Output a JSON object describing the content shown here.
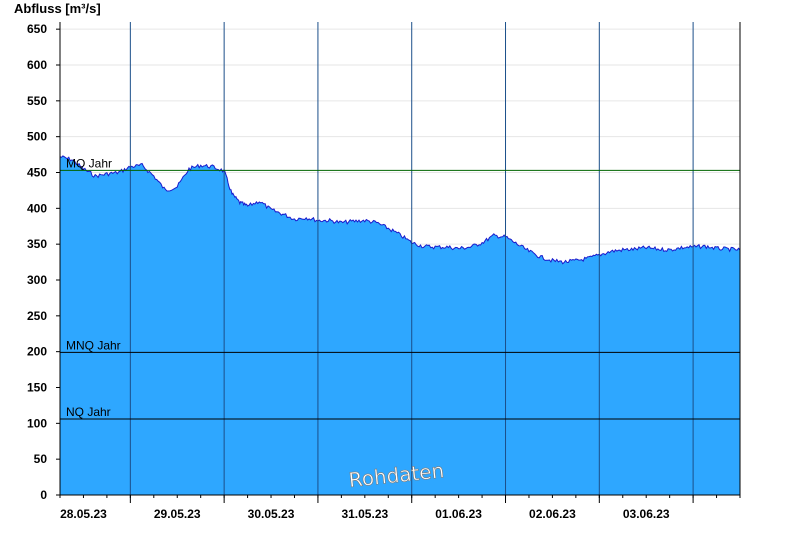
{
  "chart_data": {
    "type": "area",
    "ylabel": "Abfluss [m³/s]",
    "ylim": [
      0,
      660
    ],
    "yticks": [
      0,
      50,
      100,
      150,
      200,
      250,
      300,
      350,
      400,
      450,
      500,
      550,
      600,
      650
    ],
    "xlim": [
      "2023-05-27T18:00",
      "2023-06-04T00:00"
    ],
    "day_boundaries": [
      "2023-05-28T12:00",
      "2023-05-29T12:00",
      "2023-05-30T12:00",
      "2023-05-31T12:00",
      "2023-06-01T12:00",
      "2023-06-02T12:00",
      "2023-06-03T12:00"
    ],
    "x_tick_labels": [
      {
        "label": "28.05.23",
        "x": "2023-05-28T00:00"
      },
      {
        "label": "29.05.23",
        "x": "2023-05-29T00:00"
      },
      {
        "label": "30.05.23",
        "x": "2023-05-30T00:00"
      },
      {
        "label": "31.05.23",
        "x": "2023-05-31T00:00"
      },
      {
        "label": "01.06.23",
        "x": "2023-06-01T00:00"
      },
      {
        "label": "02.06.23",
        "x": "2023-06-02T00:00"
      },
      {
        "label": "03.06.23",
        "x": "2023-06-03T00:00"
      }
    ],
    "reference_lines": [
      {
        "name": "MQ Jahr",
        "value": 453,
        "color": "#006400"
      },
      {
        "name": "MNQ Jahr",
        "value": 199,
        "color": "#000000"
      },
      {
        "name": "NQ Jahr",
        "value": 106,
        "color": "#000000"
      }
    ],
    "series": [
      {
        "color": "#2ea7ff",
        "line_color": "#1a1acc",
        "x": [
          "2023-05-27T18:00",
          "2023-05-27T21:00",
          "2023-05-28T00:00",
          "2023-05-28T03:00",
          "2023-05-28T06:00",
          "2023-05-28T09:00",
          "2023-05-28T12:00",
          "2023-05-28T15:00",
          "2023-05-28T18:00",
          "2023-05-28T21:00",
          "2023-05-29T00:00",
          "2023-05-29T03:00",
          "2023-05-29T06:00",
          "2023-05-29T09:00",
          "2023-05-29T12:00",
          "2023-05-29T14:00",
          "2023-05-29T16:00",
          "2023-05-29T18:00",
          "2023-05-29T21:00",
          "2023-05-30T00:00",
          "2023-05-30T03:00",
          "2023-05-30T06:00",
          "2023-05-30T09:00",
          "2023-05-30T12:00",
          "2023-05-30T15:00",
          "2023-05-30T18:00",
          "2023-05-30T21:00",
          "2023-05-31T00:00",
          "2023-05-31T03:00",
          "2023-05-31T06:00",
          "2023-05-31T09:00",
          "2023-05-31T12:00",
          "2023-05-31T15:00",
          "2023-05-31T18:00",
          "2023-05-31T21:00",
          "2023-06-01T00:00",
          "2023-06-01T03:00",
          "2023-06-01T06:00",
          "2023-06-01T09:00",
          "2023-06-01T12:00",
          "2023-06-01T15:00",
          "2023-06-01T18:00",
          "2023-06-01T21:00",
          "2023-06-02T00:00",
          "2023-06-02T03:00",
          "2023-06-02T06:00",
          "2023-06-02T09:00",
          "2023-06-02T12:00",
          "2023-06-02T15:00",
          "2023-06-02T18:00",
          "2023-06-02T21:00",
          "2023-06-03T00:00",
          "2023-06-03T03:00",
          "2023-06-03T06:00",
          "2023-06-03T09:00",
          "2023-06-03T12:00",
          "2023-06-03T15:00",
          "2023-06-03T18:00",
          "2023-06-03T21:00",
          "2023-06-04T00:00"
        ],
        "values": [
          472,
          468,
          455,
          445,
          448,
          450,
          458,
          460,
          445,
          425,
          430,
          455,
          460,
          458,
          452,
          420,
          408,
          403,
          410,
          398,
          392,
          385,
          387,
          383,
          383,
          380,
          382,
          383,
          380,
          372,
          363,
          352,
          347,
          346,
          346,
          344,
          346,
          352,
          362,
          360,
          350,
          340,
          332,
          327,
          325,
          327,
          330,
          335,
          340,
          342,
          343,
          345,
          343,
          342,
          345,
          346,
          347,
          344,
          343,
          342
        ]
      }
    ],
    "annotations": [
      "Rohdaten"
    ]
  }
}
